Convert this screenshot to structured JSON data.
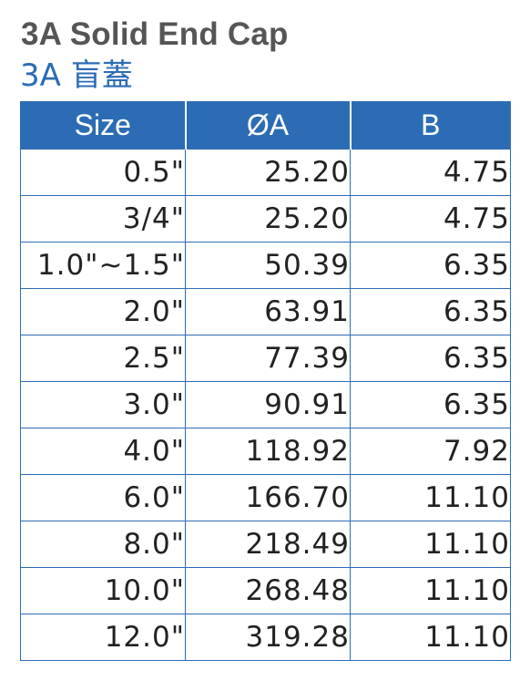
{
  "title": {
    "english": "3A Solid End Cap",
    "chinese": "3A 盲蓋"
  },
  "table": {
    "headers": [
      "Size",
      "ØA",
      "B"
    ],
    "rows": [
      {
        "size": "0.5\"",
        "a": "25.20",
        "b": "4.75"
      },
      {
        "size": "3/4\"",
        "a": "25.20",
        "b": "4.75"
      },
      {
        "size": "1.0\"~1.5\"",
        "a": "50.39",
        "b": "6.35"
      },
      {
        "size": "2.0\"",
        "a": "63.91",
        "b": "6.35"
      },
      {
        "size": "2.5\"",
        "a": "77.39",
        "b": "6.35"
      },
      {
        "size": "3.0\"",
        "a": "90.91",
        "b": "6.35"
      },
      {
        "size": "4.0\"",
        "a": "118.92",
        "b": "7.92"
      },
      {
        "size": "6.0\"",
        "a": "166.70",
        "b": "11.10"
      },
      {
        "size": "8.0\"",
        "a": "218.49",
        "b": "11.10"
      },
      {
        "size": "10.0\"",
        "a": "268.48",
        "b": "11.10"
      },
      {
        "size": "12.0\"",
        "a": "319.28",
        "b": "11.10"
      }
    ]
  },
  "colors": {
    "accent": "#2c6cb5",
    "title_gray": "#555555"
  }
}
